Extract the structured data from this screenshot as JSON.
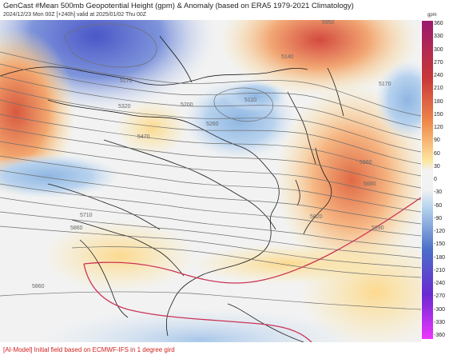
{
  "header": {
    "title": "GenCast #Mean 500mb Geopotential Height (gpm) & Anomaly (based on ERA5 1979-2021 Climatology)",
    "subtitle": "2024/12/23 Mon 00Z [+240h] valid at 2025/01/02 Thu 00Z"
  },
  "footer": {
    "note": "[AI-Model] Initial field based on ECMWF-IFS in 1 degree gird"
  },
  "colorbar": {
    "unit": "gpm",
    "ticks": [
      "360",
      "330",
      "300",
      "270",
      "240",
      "210",
      "180",
      "150",
      "120",
      "90",
      "60",
      "30",
      "0",
      "-30",
      "-60",
      "-90",
      "-120",
      "-150",
      "-180",
      "-210",
      "-240",
      "-270",
      "-300",
      "-330",
      "-360"
    ],
    "colors": {
      "top": "#9b1b6e",
      "red": "#c83737",
      "orange": "#f08a4b",
      "yellow": "#fde6a0",
      "neutral": "#f2f2f2",
      "lightblue": "#bcd8ef",
      "blue": "#4a6fc8",
      "purple": "#6a2ad1",
      "bottom": "#ee36ff"
    }
  },
  "contour_labels": [
    "5170",
    "5320",
    "5200",
    "5110",
    "5140",
    "5470",
    "5170",
    "5260",
    "5560",
    "5680",
    "5710",
    "5860",
    "5820",
    "5890",
    "5860",
    "5950"
  ],
  "reference_line_color": "#cc3355"
}
